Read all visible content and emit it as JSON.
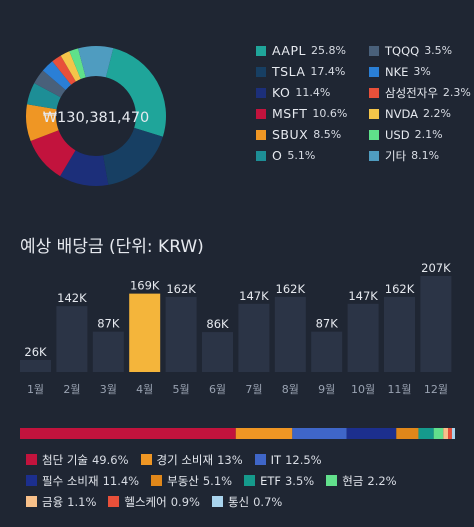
{
  "colors": {
    "background": "#1f2633",
    "bar": "#2b3446",
    "bar_highlight": "#f4b53b",
    "text": "#e6e9ef",
    "muted": "#9aa3b2"
  },
  "portfolio": {
    "total_label": "₩130,381,470"
  },
  "holdings": [
    {
      "name": "AAPL",
      "pct_label": "25.8%",
      "value": 25.8,
      "color": "#1fa59a"
    },
    {
      "name": "TSLA",
      "pct_label": "17.4%",
      "value": 17.4,
      "color": "#173f63"
    },
    {
      "name": "KO",
      "pct_label": "11.4%",
      "value": 11.4,
      "color": "#1c2f7a"
    },
    {
      "name": "MSFT",
      "pct_label": "10.6%",
      "value": 10.6,
      "color": "#c2133d"
    },
    {
      "name": "SBUX",
      "pct_label": "8.5%",
      "value": 8.5,
      "color": "#ef9624"
    },
    {
      "name": "O",
      "pct_label": "5.1%",
      "value": 5.1,
      "color": "#1d8e96"
    },
    {
      "name": "TQQQ",
      "pct_label": "3.5%",
      "value": 3.5,
      "color": "#49607a"
    },
    {
      "name": "NKE",
      "pct_label": "3%",
      "value": 3.0,
      "color": "#2a7fd6"
    },
    {
      "name": "삼성전자우",
      "pct_label": "2.3%",
      "value": 2.3,
      "color": "#e8503a"
    },
    {
      "name": "NVDA",
      "pct_label": "2.2%",
      "value": 2.2,
      "color": "#f4c54a"
    },
    {
      "name": "USD",
      "pct_label": "2.1%",
      "value": 2.1,
      "color": "#5fe08a"
    },
    {
      "name": "기타",
      "pct_label": "8.1%",
      "value": 8.1,
      "color": "#4f9cc0"
    }
  ],
  "chart_data": {
    "type": "bar",
    "title": "예상 배당금 (단위: KRW)",
    "categories": [
      "1월",
      "2월",
      "3월",
      "4월",
      "5월",
      "6월",
      "7월",
      "8월",
      "9월",
      "10월",
      "11월",
      "12월"
    ],
    "values": [
      26,
      142,
      87,
      169,
      162,
      86,
      147,
      162,
      87,
      147,
      162,
      207
    ],
    "value_labels": [
      "26K",
      "142K",
      "87K",
      "169K",
      "162K",
      "86K",
      "147K",
      "162K",
      "87K",
      "147K",
      "162K",
      "207K"
    ],
    "unit": "K",
    "highlight_index": 3,
    "ylim": [
      0,
      220
    ]
  },
  "sectors": [
    {
      "name": "첨단 기술",
      "pct_label": "49.6%",
      "value": 49.6,
      "color": "#c2133d"
    },
    {
      "name": "경기 소비재",
      "pct_label": "13%",
      "value": 13.0,
      "color": "#ef9624"
    },
    {
      "name": "IT",
      "pct_label": "12.5%",
      "value": 12.5,
      "color": "#3f66c8"
    },
    {
      "name": "필수 소비재",
      "pct_label": "11.4%",
      "value": 11.4,
      "color": "#1c2f8e"
    },
    {
      "name": "부동산",
      "pct_label": "5.1%",
      "value": 5.1,
      "color": "#e0871a"
    },
    {
      "name": "ETF",
      "pct_label": "3.5%",
      "value": 3.5,
      "color": "#159a8c"
    },
    {
      "name": "현금",
      "pct_label": "2.2%",
      "value": 2.2,
      "color": "#62e08c"
    },
    {
      "name": "금융",
      "pct_label": "1.1%",
      "value": 1.1,
      "color": "#f7c08a"
    },
    {
      "name": "헬스케어",
      "pct_label": "0.9%",
      "value": 0.9,
      "color": "#e8503a"
    },
    {
      "name": "통신",
      "pct_label": "0.7%",
      "value": 0.7,
      "color": "#a9d4ee"
    }
  ]
}
